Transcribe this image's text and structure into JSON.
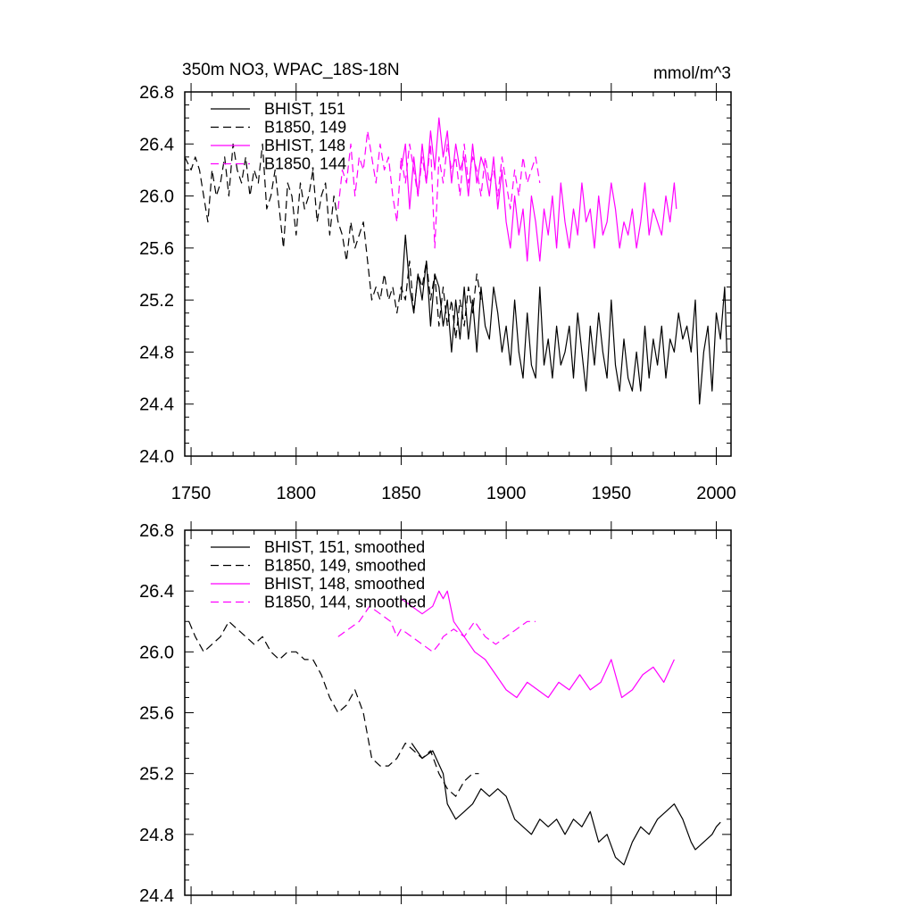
{
  "chart_data": [
    {
      "type": "line",
      "title": "350m NO3, WPAC_18S-18N",
      "units": "mmol/m^3",
      "xlim": [
        1747,
        2007
      ],
      "ylim": [
        24.0,
        26.8
      ],
      "xticks": [
        1750,
        1800,
        1850,
        1900,
        1950,
        2000
      ],
      "yticks": [
        24.0,
        24.4,
        24.8,
        25.2,
        25.6,
        26.0,
        26.4,
        26.8
      ],
      "ytick_labels": [
        "24.0",
        "24.4",
        "24.8",
        "25.2",
        "25.6",
        "26.0",
        "26.4",
        "26.8"
      ],
      "legend_position": "top-left",
      "series": [
        {
          "name": "BHIST, 151",
          "color": "#000000",
          "dash": "solid",
          "x": [
            1850,
            1852,
            1854,
            1856,
            1858,
            1860,
            1862,
            1864,
            1866,
            1868,
            1870,
            1872,
            1874,
            1876,
            1878,
            1880,
            1882,
            1884,
            1886,
            1888,
            1890,
            1892,
            1894,
            1896,
            1898,
            1900,
            1902,
            1904,
            1906,
            1908,
            1910,
            1912,
            1914,
            1916,
            1918,
            1920,
            1922,
            1924,
            1926,
            1928,
            1930,
            1932,
            1934,
            1936,
            1938,
            1940,
            1942,
            1944,
            1946,
            1948,
            1950,
            1952,
            1954,
            1956,
            1958,
            1960,
            1962,
            1964,
            1966,
            1968,
            1970,
            1972,
            1974,
            1976,
            1978,
            1980,
            1982,
            1984,
            1986,
            1988,
            1990,
            1992,
            1994,
            1996,
            1998,
            2000,
            2002,
            2004,
            2005
          ],
          "values": [
            25.2,
            25.7,
            25.3,
            25.1,
            25.4,
            25.2,
            25.5,
            25.0,
            25.4,
            25.3,
            25.0,
            25.2,
            24.8,
            25.2,
            24.9,
            25.3,
            24.9,
            25.2,
            24.8,
            25.3,
            25.0,
            24.9,
            25.3,
            25.1,
            24.8,
            25.0,
            24.7,
            25.2,
            24.8,
            24.6,
            25.1,
            24.7,
            24.6,
            25.3,
            24.7,
            24.9,
            24.6,
            25.0,
            24.7,
            24.8,
            25.0,
            24.6,
            25.1,
            24.8,
            24.5,
            25.0,
            24.7,
            25.1,
            24.8,
            24.6,
            25.2,
            24.7,
            24.5,
            24.9,
            24.6,
            24.5,
            24.8,
            24.5,
            25.0,
            24.6,
            24.9,
            24.7,
            25.0,
            24.6,
            24.9,
            24.8,
            25.1,
            24.9,
            25.0,
            24.8,
            25.2,
            24.4,
            24.8,
            25.0,
            24.5,
            25.1,
            24.9,
            25.3,
            24.8
          ]
        },
        {
          "name": "B1850, 149",
          "color": "#000000",
          "dash": "dashed",
          "x": [
            1747,
            1750,
            1752,
            1754,
            1756,
            1758,
            1760,
            1762,
            1764,
            1766,
            1768,
            1770,
            1772,
            1774,
            1776,
            1778,
            1780,
            1782,
            1784,
            1786,
            1788,
            1790,
            1792,
            1794,
            1796,
            1798,
            1800,
            1802,
            1804,
            1806,
            1808,
            1810,
            1812,
            1814,
            1816,
            1818,
            1820,
            1822,
            1824,
            1826,
            1828,
            1830,
            1832,
            1834,
            1836,
            1838,
            1840,
            1842,
            1844,
            1846,
            1848,
            1850,
            1852,
            1854,
            1856,
            1858,
            1860,
            1862,
            1864,
            1866,
            1868,
            1870,
            1872,
            1874,
            1876,
            1878,
            1880,
            1882,
            1884,
            1886,
            1888
          ],
          "values": [
            26.3,
            26.2,
            26.3,
            26.2,
            26.0,
            25.8,
            26.2,
            26.0,
            26.1,
            26.3,
            26.0,
            26.4,
            26.2,
            26.1,
            26.3,
            26.0,
            26.2,
            26.1,
            26.4,
            25.9,
            26.0,
            26.2,
            25.9,
            25.6,
            26.1,
            26.0,
            25.7,
            26.1,
            25.9,
            26.0,
            26.2,
            25.8,
            26.0,
            26.1,
            25.7,
            26.0,
            25.8,
            25.7,
            25.5,
            25.8,
            25.6,
            25.7,
            25.8,
            25.5,
            25.2,
            25.3,
            25.2,
            25.4,
            25.2,
            25.3,
            25.1,
            25.3,
            25.2,
            25.5,
            25.1,
            25.4,
            25.3,
            25.5,
            25.2,
            25.4,
            25.0,
            25.3,
            25.0,
            25.2,
            24.9,
            25.2,
            25.0,
            25.3,
            25.1,
            25.4,
            25.2
          ]
        },
        {
          "name": "BHIST, 148",
          "color": "#ff00ff",
          "dash": "solid",
          "x": [
            1850,
            1852,
            1854,
            1856,
            1858,
            1860,
            1862,
            1864,
            1866,
            1868,
            1870,
            1872,
            1874,
            1876,
            1878,
            1880,
            1882,
            1884,
            1886,
            1888,
            1890,
            1892,
            1894,
            1896,
            1898,
            1900,
            1902,
            1904,
            1906,
            1908,
            1910,
            1912,
            1914,
            1916,
            1918,
            1920,
            1922,
            1924,
            1926,
            1928,
            1930,
            1932,
            1934,
            1936,
            1938,
            1940,
            1942,
            1944,
            1946,
            1948,
            1950,
            1952,
            1954,
            1956,
            1958,
            1960,
            1962,
            1964,
            1966,
            1968,
            1970,
            1972,
            1974,
            1976,
            1978,
            1980,
            1981
          ],
          "values": [
            26.2,
            26.4,
            25.9,
            26.3,
            26.0,
            26.4,
            26.1,
            26.5,
            26.2,
            26.6,
            26.3,
            26.5,
            26.1,
            26.4,
            26.2,
            26.3,
            26.0,
            26.4,
            26.1,
            26.3,
            26.2,
            26.0,
            26.3,
            25.9,
            26.2,
            25.8,
            25.6,
            26.0,
            25.7,
            25.9,
            25.5,
            26.0,
            25.8,
            25.5,
            25.9,
            25.7,
            26.0,
            25.6,
            26.1,
            25.8,
            25.6,
            25.9,
            25.7,
            26.1,
            25.8,
            25.9,
            25.6,
            26.0,
            25.7,
            25.8,
            26.1,
            25.9,
            25.6,
            25.8,
            25.7,
            25.9,
            25.6,
            25.8,
            26.1,
            25.7,
            25.9,
            25.8,
            25.7,
            26.0,
            25.8,
            26.1,
            25.9
          ]
        },
        {
          "name": "B1850, 144",
          "color": "#ff00ff",
          "dash": "dashed",
          "x": [
            1820,
            1822,
            1824,
            1826,
            1828,
            1830,
            1832,
            1834,
            1836,
            1838,
            1840,
            1842,
            1844,
            1846,
            1848,
            1850,
            1852,
            1854,
            1856,
            1858,
            1860,
            1862,
            1864,
            1866,
            1868,
            1870,
            1872,
            1874,
            1876,
            1878,
            1880,
            1882,
            1884,
            1886,
            1888,
            1890,
            1892,
            1894,
            1896,
            1898,
            1900,
            1902,
            1904,
            1906,
            1908,
            1910,
            1912,
            1914,
            1916
          ],
          "values": [
            25.9,
            26.2,
            26.1,
            26.4,
            26.0,
            26.3,
            26.2,
            26.5,
            26.3,
            26.1,
            26.4,
            26.2,
            26.3,
            26.0,
            25.8,
            26.3,
            26.1,
            26.4,
            26.2,
            26.0,
            26.3,
            26.1,
            26.4,
            25.6,
            26.3,
            26.1,
            26.4,
            26.2,
            26.3,
            26.0,
            26.4,
            26.1,
            26.3,
            26.2,
            26.0,
            26.3,
            26.1,
            26.2,
            26.0,
            26.3,
            26.1,
            25.9,
            26.2,
            26.0,
            26.3,
            26.1,
            26.2,
            26.3,
            26.1
          ]
        }
      ]
    },
    {
      "type": "line",
      "title": "",
      "xlim": [
        1747,
        2007
      ],
      "ylim": [
        24.4,
        26.8
      ],
      "xticks": [
        1750,
        1800,
        1850,
        1900,
        1950,
        2000
      ],
      "yticks": [
        24.4,
        24.8,
        25.2,
        25.6,
        26.0,
        26.4,
        26.8
      ],
      "ytick_labels": [
        "24.4",
        "24.8",
        "25.2",
        "25.6",
        "26.0",
        "26.4",
        "26.8"
      ],
      "legend_position": "top-left",
      "series": [
        {
          "name": "BHIST, 151, smoothed",
          "color": "#000000",
          "dash": "solid",
          "x": [
            1855,
            1860,
            1865,
            1870,
            1872,
            1874,
            1876,
            1880,
            1884,
            1888,
            1892,
            1896,
            1900,
            1904,
            1908,
            1912,
            1916,
            1920,
            1924,
            1928,
            1932,
            1936,
            1940,
            1944,
            1948,
            1952,
            1956,
            1960,
            1964,
            1968,
            1972,
            1976,
            1980,
            1984,
            1988,
            1990,
            1994,
            1998,
            2000,
            2002
          ],
          "values": [
            25.4,
            25.3,
            25.35,
            25.2,
            25.0,
            24.95,
            24.9,
            24.95,
            25.0,
            25.1,
            25.05,
            25.1,
            25.05,
            24.9,
            24.85,
            24.8,
            24.9,
            24.85,
            24.9,
            24.8,
            24.9,
            24.85,
            24.95,
            24.75,
            24.8,
            24.65,
            24.6,
            24.75,
            24.85,
            24.8,
            24.9,
            24.95,
            25.0,
            24.9,
            24.75,
            24.7,
            24.75,
            24.8,
            24.85,
            24.88
          ]
        },
        {
          "name": "B1850, 149, smoothed",
          "color": "#000000",
          "dash": "dashed",
          "x": [
            1749,
            1752,
            1756,
            1760,
            1764,
            1768,
            1772,
            1776,
            1780,
            1784,
            1788,
            1792,
            1796,
            1800,
            1804,
            1808,
            1812,
            1816,
            1820,
            1824,
            1828,
            1832,
            1836,
            1840,
            1844,
            1848,
            1852,
            1856,
            1860,
            1864,
            1868,
            1872,
            1876,
            1880,
            1884,
            1887
          ],
          "values": [
            26.2,
            26.1,
            26.0,
            26.05,
            26.1,
            26.2,
            26.15,
            26.1,
            26.05,
            26.1,
            26.0,
            25.95,
            26.0,
            26.0,
            25.95,
            25.95,
            25.85,
            25.7,
            25.6,
            25.65,
            25.75,
            25.6,
            25.3,
            25.25,
            25.25,
            25.3,
            25.4,
            25.35,
            25.3,
            25.35,
            25.2,
            25.1,
            25.05,
            25.15,
            25.2,
            25.2
          ]
        },
        {
          "name": "BHIST, 148, smoothed",
          "color": "#ff00ff",
          "dash": "solid",
          "x": [
            1850,
            1855,
            1860,
            1865,
            1868,
            1870,
            1872,
            1875,
            1880,
            1885,
            1890,
            1895,
            1900,
            1905,
            1910,
            1915,
            1920,
            1925,
            1930,
            1935,
            1940,
            1945,
            1950,
            1955,
            1960,
            1965,
            1970,
            1975,
            1980
          ],
          "values": [
            26.35,
            26.3,
            26.25,
            26.3,
            26.4,
            26.35,
            26.4,
            26.2,
            26.1,
            26.0,
            25.95,
            25.85,
            25.75,
            25.7,
            25.8,
            25.75,
            25.7,
            25.8,
            25.75,
            25.85,
            25.75,
            25.8,
            25.95,
            25.7,
            25.75,
            25.85,
            25.9,
            25.8,
            25.95
          ]
        },
        {
          "name": "B1850, 144, smoothed",
          "color": "#ff00ff",
          "dash": "dashed",
          "x": [
            1820,
            1825,
            1830,
            1835,
            1840,
            1845,
            1848,
            1850,
            1855,
            1860,
            1865,
            1868,
            1870,
            1875,
            1880,
            1885,
            1890,
            1895,
            1900,
            1905,
            1910,
            1914
          ],
          "values": [
            26.1,
            26.15,
            26.2,
            26.3,
            26.25,
            26.2,
            26.1,
            26.15,
            26.1,
            26.05,
            26.0,
            26.05,
            26.1,
            26.15,
            26.1,
            26.2,
            26.1,
            26.05,
            26.1,
            26.15,
            26.2,
            26.2
          ]
        }
      ]
    }
  ]
}
